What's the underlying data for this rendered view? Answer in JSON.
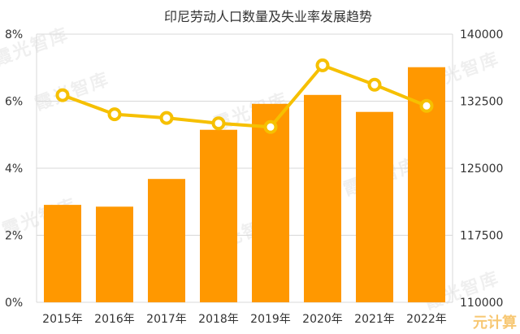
{
  "chart_data": {
    "type": "bar+line",
    "title": "印尼劳动人口数量及失业率发展趋势",
    "categories": [
      "2015年",
      "2016年",
      "2017年",
      "2018年",
      "2019年",
      "2020年",
      "2021年",
      "2022年"
    ],
    "bar_series": {
      "axis": "right",
      "values": [
        120900,
        120700,
        123800,
        129300,
        132200,
        133200,
        131300,
        136300
      ]
    },
    "line_series": {
      "axis": "left",
      "values": [
        6.18,
        5.61,
        5.5,
        5.34,
        5.23,
        7.07,
        6.49,
        5.86
      ]
    },
    "left_axis": {
      "ylim": [
        0,
        8
      ],
      "ticks": [
        "0%",
        "2%",
        "4%",
        "6%",
        "8%"
      ]
    },
    "right_axis": {
      "ylim": [
        110000,
        140000
      ],
      "ticks": [
        "110000",
        "117500",
        "125000",
        "132500",
        "140000"
      ]
    },
    "grid": true,
    "colors": {
      "bar": "#ff9800",
      "line": "#f6c000",
      "grid": "#d8d8d8",
      "text": "#333333"
    }
  },
  "watermark": "霞光智库",
  "brand": "元计算"
}
